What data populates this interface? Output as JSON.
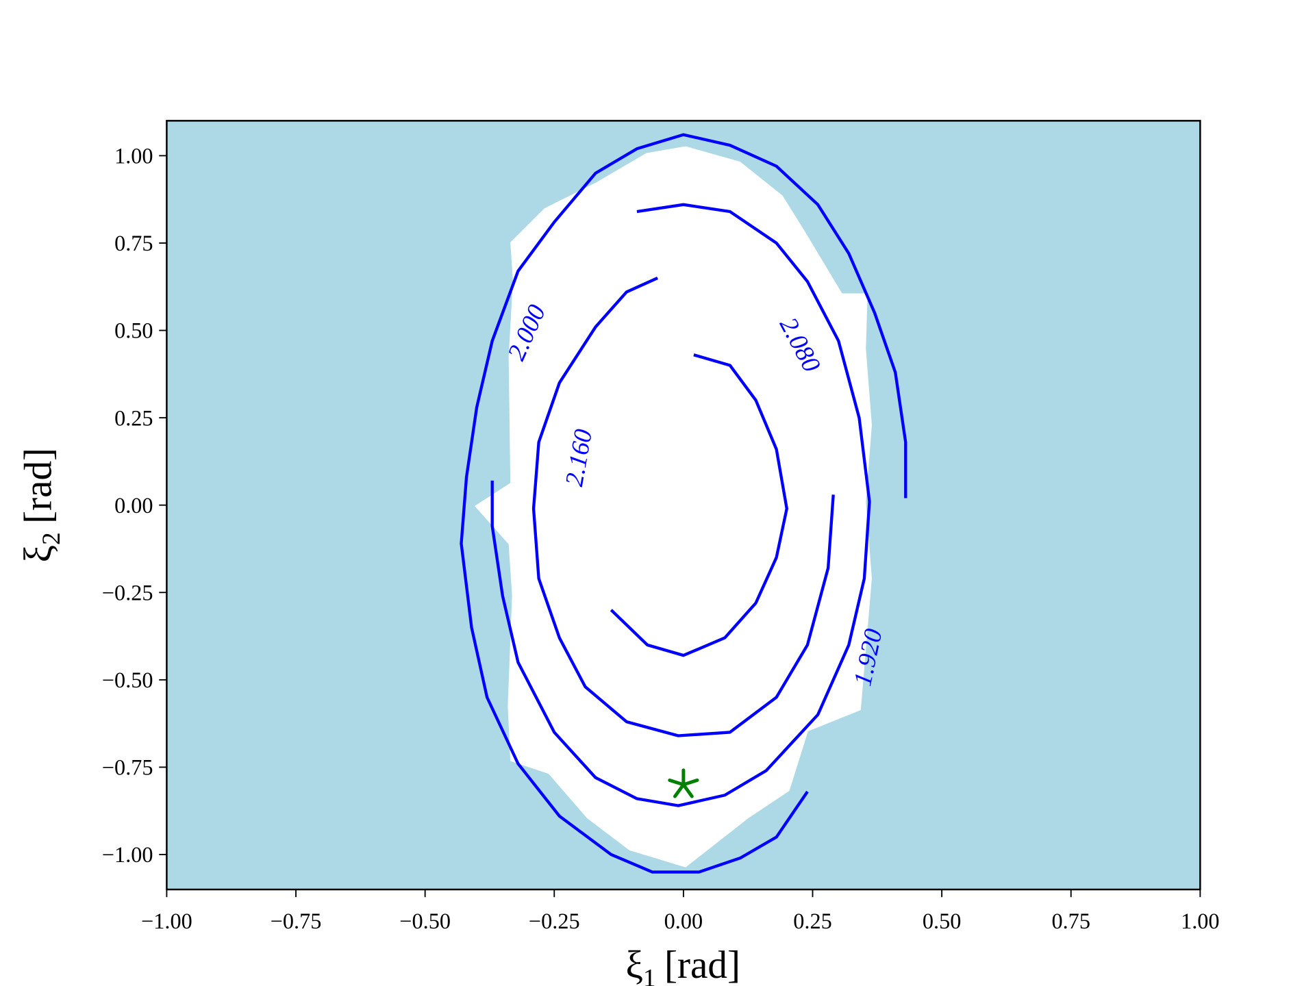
{
  "chart_data": {
    "type": "contour",
    "background": "#add8e6",
    "xlim": [
      -1,
      1
    ],
    "ylim": [
      -1.1,
      1.1
    ],
    "xticks": [
      {
        "value": -1,
        "label": "−1.00"
      },
      {
        "value": -0.75,
        "label": "−0.75"
      },
      {
        "value": -0.5,
        "label": "−0.50"
      },
      {
        "value": -0.25,
        "label": "−0.25"
      },
      {
        "value": 0,
        "label": "0.00"
      },
      {
        "value": 0.25,
        "label": "0.25"
      },
      {
        "value": 0.5,
        "label": "0.50"
      },
      {
        "value": 0.75,
        "label": "0.75"
      },
      {
        "value": 1,
        "label": "1.00"
      }
    ],
    "yticks": [
      {
        "value": -1,
        "label": "−1.00"
      },
      {
        "value": -0.75,
        "label": "−0.75"
      },
      {
        "value": -0.5,
        "label": "−0.50"
      },
      {
        "value": -0.25,
        "label": "−0.25"
      },
      {
        "value": 0,
        "label": "0.00"
      },
      {
        "value": 0.25,
        "label": "0.25"
      },
      {
        "value": 0.5,
        "label": "0.50"
      },
      {
        "value": 0.75,
        "label": "0.75"
      },
      {
        "value": 1,
        "label": "1.00"
      }
    ],
    "xlabel": {
      "symbol": "ξ",
      "subscript": "1",
      "unit": "[rad]"
    },
    "ylabel": {
      "symbol": "ξ",
      "subscript": "2",
      "unit": "[rad]"
    },
    "series": [
      {
        "label": "1.920",
        "color": "#0000ff",
        "x": [
          0.43,
          0.43,
          0.41,
          0.37,
          0.32,
          0.26,
          0.18,
          0.09,
          0.0,
          -0.09,
          -0.17,
          -0.25,
          -0.32,
          -0.37,
          -0.4,
          -0.42,
          -0.43,
          -0.41,
          -0.38,
          -0.32,
          -0.24,
          -0.14,
          -0.06,
          0.03,
          0.11,
          0.18,
          0.24
        ],
        "y": [
          0.02,
          0.18,
          0.38,
          0.55,
          0.72,
          0.86,
          0.97,
          1.03,
          1.06,
          1.02,
          0.95,
          0.81,
          0.67,
          0.47,
          0.28,
          0.08,
          -0.11,
          -0.35,
          -0.55,
          -0.74,
          -0.89,
          -1.0,
          -1.05,
          -1.05,
          -1.01,
          -0.95,
          -0.82
        ]
      },
      {
        "label": "2.000",
        "color": "#0000ff",
        "x": [
          -0.09,
          0.0,
          0.09,
          0.18,
          0.24,
          0.3,
          0.34,
          0.36,
          0.35,
          0.32,
          0.26,
          0.16,
          0.08,
          -0.01,
          -0.09,
          -0.17,
          -0.25,
          -0.32,
          -0.35,
          -0.37,
          -0.37
        ],
        "y": [
          0.84,
          0.86,
          0.84,
          0.75,
          0.64,
          0.47,
          0.25,
          0.01,
          -0.21,
          -0.4,
          -0.6,
          -0.76,
          -0.83,
          -0.86,
          -0.84,
          -0.78,
          -0.65,
          -0.45,
          -0.26,
          -0.06,
          0.07
        ]
      },
      {
        "label": "2.080",
        "color": "#0000ff",
        "x": [
          -0.05,
          -0.11,
          -0.17,
          -0.24,
          -0.28,
          -0.29,
          -0.28,
          -0.24,
          -0.19,
          -0.11,
          -0.01,
          0.09,
          0.18,
          0.24,
          0.28,
          0.29
        ],
        "y": [
          0.65,
          0.61,
          0.51,
          0.35,
          0.18,
          -0.01,
          -0.21,
          -0.38,
          -0.52,
          -0.62,
          -0.66,
          -0.65,
          -0.55,
          -0.4,
          -0.18,
          0.03
        ]
      },
      {
        "label": "2.160",
        "color": "#0000ff",
        "x": [
          0.02,
          0.09,
          0.14,
          0.18,
          0.2,
          0.18,
          0.14,
          0.08,
          0.0,
          -0.07,
          -0.14
        ],
        "y": [
          0.43,
          0.4,
          0.3,
          0.16,
          -0.01,
          -0.15,
          -0.28,
          -0.38,
          -0.43,
          -0.4,
          -0.3
        ]
      }
    ],
    "markers": [
      {
        "x": 0,
        "y": -0.8,
        "color": "#008000"
      }
    ]
  }
}
